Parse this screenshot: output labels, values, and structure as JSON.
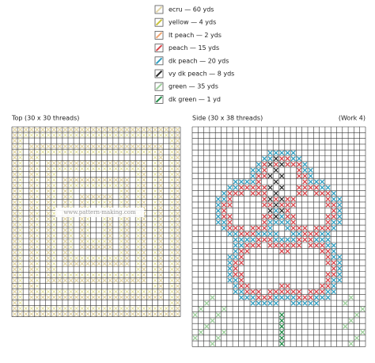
{
  "legend": [
    {
      "label": "ecru — 60 yds",
      "color": "#e3d6a8"
    },
    {
      "label": "yellow — 4 yds",
      "color": "#c9c23a"
    },
    {
      "label": "lt peach — 2 yds",
      "color": "#f2a46e"
    },
    {
      "label": "peach — 15 yds",
      "color": "#d9444a"
    },
    {
      "label": "dk peach — 20 yds",
      "color": "#2f9fc2"
    },
    {
      "label": "vy dk peach — 8 yds",
      "color": "#2a2a2a"
    },
    {
      "label": "green — 35 yds",
      "color": "#9ccf9a"
    },
    {
      "label": "dk green — 1 yd",
      "color": "#1f8a45"
    }
  ],
  "top": {
    "label": "Top (30 x 30 threads)",
    "watermark": "www.pattern-making.com"
  },
  "side": {
    "label": "Side (30 x 38 threads)",
    "note": "(Work 4)"
  }
}
